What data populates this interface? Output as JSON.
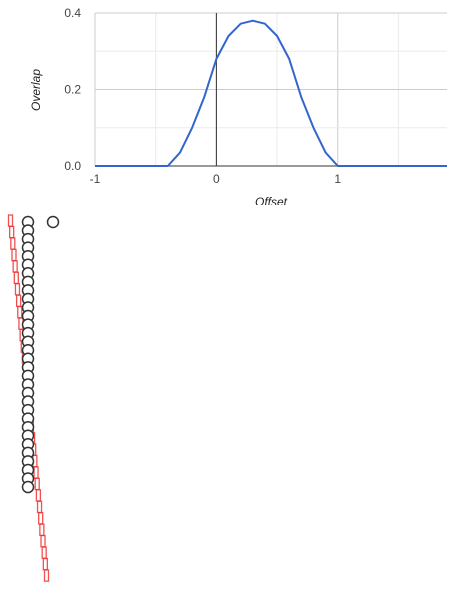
{
  "chart_data": {
    "type": "line",
    "title": "",
    "xlabel": "Offset",
    "ylabel": "Overlap",
    "xlim": [
      -1,
      1.9
    ],
    "ylim": [
      0,
      0.4
    ],
    "xticks": [
      {
        "value": -1,
        "label": "-1"
      },
      {
        "value": 0,
        "label": "0"
      },
      {
        "value": 1,
        "label": "1"
      }
    ],
    "yticks": [
      {
        "value": 0.0,
        "label": "0.0"
      },
      {
        "value": 0.2,
        "label": "0.2"
      },
      {
        "value": 0.4,
        "label": "0.4"
      }
    ],
    "grid": true,
    "legend": "none",
    "series": [
      {
        "color": "#3366cc",
        "x": [
          -1.0,
          -0.4,
          -0.3,
          -0.2,
          -0.1,
          0.0,
          0.1,
          0.2,
          0.3,
          0.4,
          0.5,
          0.6,
          0.7,
          0.8,
          0.9,
          1.0,
          1.9
        ],
        "y": [
          0.0,
          0.0,
          0.035,
          0.1,
          0.18,
          0.28,
          0.34,
          0.372,
          0.38,
          0.372,
          0.34,
          0.28,
          0.18,
          0.1,
          0.035,
          0.0,
          0.0
        ]
      }
    ]
  },
  "visualization": {
    "circle_count": 32,
    "detached_circle_count": 1,
    "rect_count": 32,
    "circle_color": "#333333",
    "rect_color": "#ee3333"
  }
}
